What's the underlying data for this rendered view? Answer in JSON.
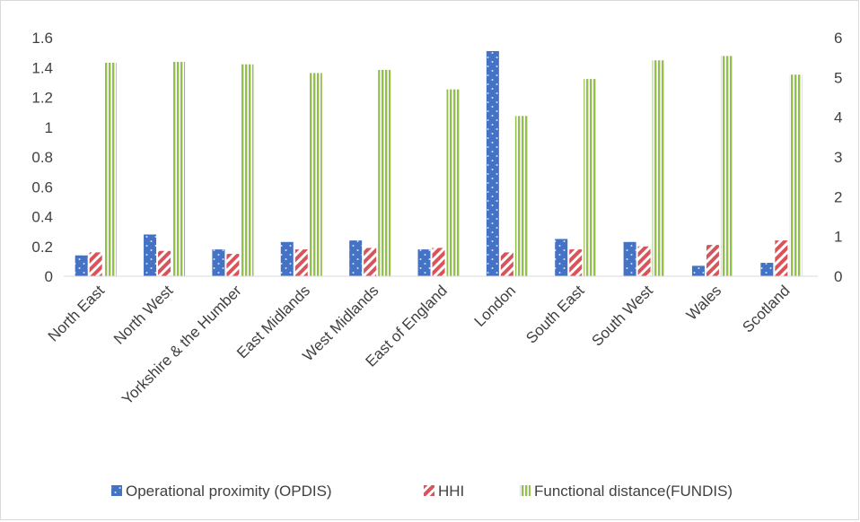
{
  "chart_data": {
    "type": "bar",
    "title": "",
    "categories": [
      "North East",
      "North West",
      "Yorkshire & the Humber",
      "East Midlands",
      "West Midlands",
      "East of England",
      "London",
      "South East",
      "South West",
      "Wales",
      "Scotland"
    ],
    "series": [
      {
        "name": "Operational proximity (OPDIS)",
        "axis": "left",
        "color": "#4472c4",
        "pattern": "dotted",
        "values": [
          0.14,
          0.28,
          0.18,
          0.23,
          0.24,
          0.18,
          1.51,
          0.25,
          0.23,
          0.07,
          0.09
        ]
      },
      {
        "name": "HHI",
        "axis": "left",
        "color": "#d9545a",
        "pattern": "diagonal-stripes",
        "values": [
          0.16,
          0.17,
          0.15,
          0.18,
          0.19,
          0.19,
          0.16,
          0.18,
          0.2,
          0.21,
          0.24
        ]
      },
      {
        "name": "Functional distance(FUNDIS)",
        "axis": "right",
        "color": "#93c047",
        "pattern": "vertical-stripes",
        "values": [
          5.37,
          5.39,
          5.33,
          5.11,
          5.19,
          4.7,
          4.03,
          4.96,
          5.43,
          5.54,
          5.07
        ]
      }
    ],
    "y_left": {
      "min": 0,
      "max": 1.6,
      "ticks": [
        "0",
        "0.2",
        "0.4",
        "0.6",
        "0.8",
        "1",
        "1.2",
        "1.4",
        "1.6"
      ]
    },
    "y_right": {
      "min": 0,
      "max": 6,
      "ticks": [
        "0",
        "1",
        "2",
        "3",
        "4",
        "5",
        "6"
      ]
    },
    "grid": false,
    "legend_position": "bottom"
  }
}
